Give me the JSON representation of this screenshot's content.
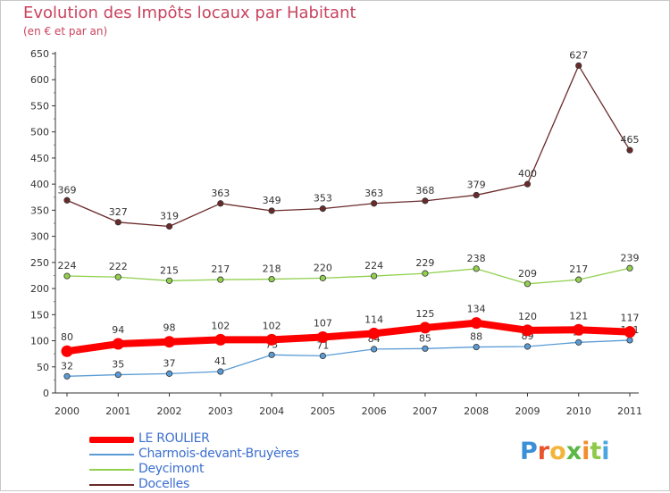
{
  "header": {
    "title": "Evolution des Impôts locaux par Habitant",
    "subtitle": "(en € et par an)"
  },
  "logo": {
    "letters": [
      "P",
      "r",
      "o",
      "x",
      "i",
      "t",
      "i"
    ],
    "colors": [
      "#3a8fd9",
      "#e8542c",
      "#f2b53a",
      "#5bb844",
      "#f28d2c",
      "#8fc94a",
      "#4aa6e0"
    ]
  },
  "chart_data": {
    "type": "line",
    "title": "Evolution des Impôts locaux par Habitant",
    "subtitle": "(en € et par an)",
    "x": [
      "2000",
      "2001",
      "2002",
      "2003",
      "2004",
      "2005",
      "2006",
      "2007",
      "2008",
      "2009",
      "2010",
      "2011"
    ],
    "ylim": [
      0,
      650
    ],
    "yticks": [
      0,
      50,
      100,
      150,
      200,
      250,
      300,
      350,
      400,
      450,
      500,
      550,
      600,
      650
    ],
    "grid": false,
    "legend_position": "bottom-left",
    "series": [
      {
        "name": "LE ROULIER",
        "color": "#ff0000",
        "values": [
          80,
          94,
          98,
          102,
          102,
          107,
          114,
          125,
          134,
          120,
          121,
          117
        ]
      },
      {
        "name": "Charmois-devant-Bruyères",
        "color": "#5b9bd5",
        "values": [
          32,
          35,
          37,
          41,
          73,
          71,
          84,
          85,
          88,
          89,
          97,
          101
        ]
      },
      {
        "name": "Deycimont",
        "color": "#92d050",
        "values": [
          224,
          222,
          215,
          217,
          218,
          220,
          224,
          229,
          238,
          209,
          217,
          239
        ]
      },
      {
        "name": "Docelles",
        "color": "#6b2a2a",
        "values": [
          369,
          327,
          319,
          363,
          349,
          353,
          363,
          368,
          379,
          400,
          627,
          465
        ]
      }
    ]
  }
}
